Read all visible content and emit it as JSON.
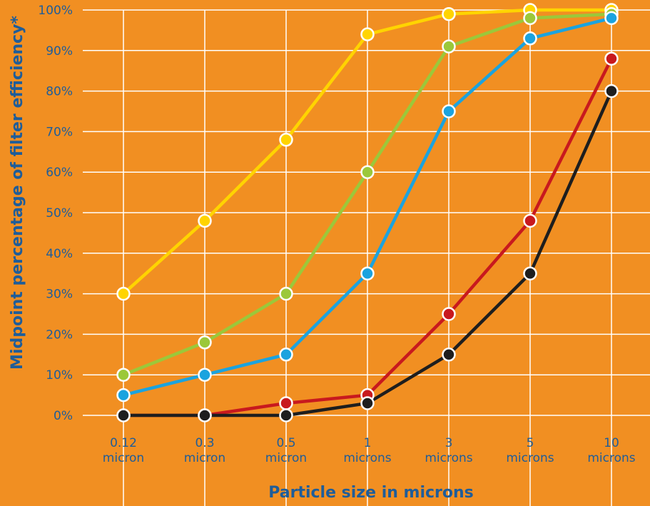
{
  "colors": {
    "background": "#F18F22",
    "grid": "#FFFFFF",
    "text": "#1F5D99"
  },
  "chart_data": {
    "type": "line",
    "title": "",
    "xlabel": "Particle size in microns",
    "ylabel": "Midpoint percentage of filter efficiency*",
    "categories": [
      [
        "0.12",
        "micron"
      ],
      [
        "0.3",
        "micron"
      ],
      [
        "0.5",
        "micron"
      ],
      [
        "1",
        "microns"
      ],
      [
        "3",
        "microns"
      ],
      [
        "5",
        "microns"
      ],
      [
        "10",
        "microns"
      ]
    ],
    "yticks": [
      "0%",
      "10%",
      "20%",
      "30%",
      "40%",
      "50%",
      "60%",
      "70%",
      "80%",
      "90%",
      "100%"
    ],
    "ylim": [
      0,
      100
    ],
    "grid": true,
    "legend": "none",
    "series": [
      {
        "color": "#FFD400",
        "values": [
          30,
          48,
          68,
          94,
          99,
          100,
          100
        ]
      },
      {
        "color": "#9BC83A",
        "values": [
          10,
          18,
          30,
          60,
          91,
          98,
          99
        ]
      },
      {
        "color": "#1BA3DF",
        "values": [
          5,
          10,
          15,
          35,
          75,
          93,
          98
        ]
      },
      {
        "color": "#C8191E",
        "values": [
          0,
          0,
          3,
          5,
          25,
          48,
          88
        ]
      },
      {
        "color": "#1E1E1E",
        "values": [
          0,
          0,
          0,
          3,
          15,
          35,
          80
        ]
      }
    ]
  }
}
